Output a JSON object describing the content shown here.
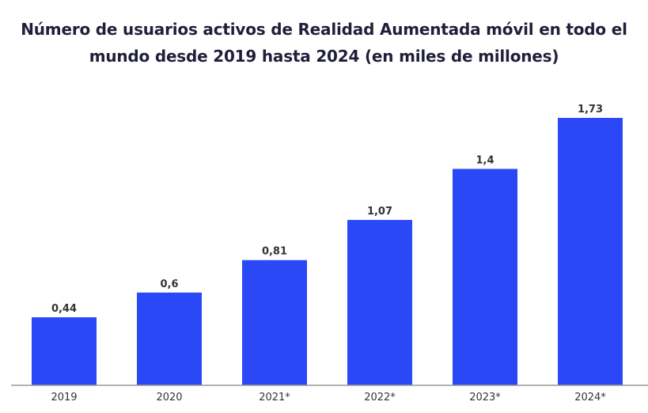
{
  "chart_data": {
    "type": "bar",
    "title_lines": [
      "Número de usuarios activos de Realidad Aumentada móvil en todo el",
      "mundo desde 2019 hasta 2024 (en miles de millones)"
    ],
    "categories": [
      "2019",
      "2020",
      "2021*",
      "2022*",
      "2023*",
      "2024*"
    ],
    "values": [
      0.44,
      0.6,
      0.81,
      1.07,
      1.4,
      1.73
    ],
    "value_labels": [
      "0,44",
      "0,6",
      "0,81",
      "1,07",
      "1,4",
      "1,73"
    ],
    "xlabel": "",
    "ylabel": "",
    "ylim": [
      0,
      1.73
    ],
    "grid": false,
    "bar_color": "#2a48f5",
    "axis_color": "#9a9a9a",
    "label_color": "#333333"
  }
}
